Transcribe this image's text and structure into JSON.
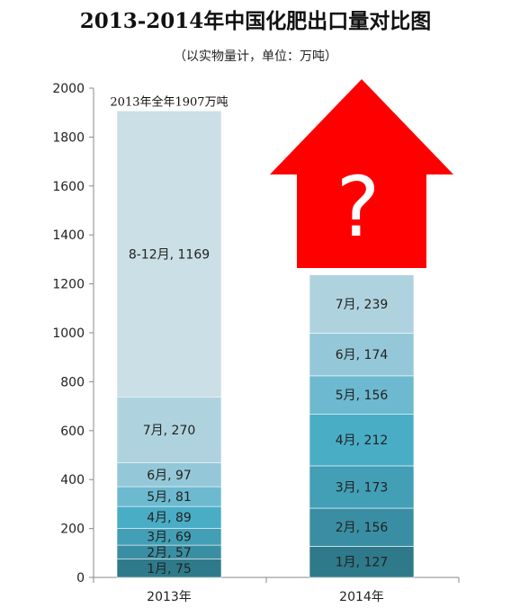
{
  "title": "2013-2014年中国化肥出口量对比图",
  "subtitle": "（以实物量计，单位：万吨）",
  "chart_data": {
    "type": "bar",
    "stacked": true,
    "ylim": [
      0,
      2000
    ],
    "yticks": [
      0,
      200,
      400,
      600,
      800,
      1000,
      1200,
      1400,
      1600,
      1800,
      2000
    ],
    "grid": false,
    "categories": [
      "2013年",
      "2014年"
    ],
    "bars": [
      {
        "category": "2013年",
        "total_label": "2013年全年1907万吨",
        "segments": [
          {
            "label": "1月, 75",
            "value": 75,
            "color": "#2e7a8a"
          },
          {
            "label": "2月, 57",
            "value": 57,
            "color": "#3a8ea3"
          },
          {
            "label": "3月, 69",
            "value": 69,
            "color": "#429fb5"
          },
          {
            "label": "4月, 89",
            "value": 89,
            "color": "#4aadc6"
          },
          {
            "label": "5月, 81",
            "value": 81,
            "color": "#6db9d0"
          },
          {
            "label": "6月, 97",
            "value": 97,
            "color": "#94c8d8"
          },
          {
            "label": "7月, 270",
            "value": 270,
            "color": "#afd3de"
          },
          {
            "label": "8-12月, 1169",
            "value": 1169,
            "color": "#cadfe6"
          }
        ]
      },
      {
        "category": "2014年",
        "segments": [
          {
            "label": "1月, 127",
            "value": 127,
            "color": "#2e7a8a"
          },
          {
            "label": "2月, 156",
            "value": 156,
            "color": "#3a8ea3"
          },
          {
            "label": "3月, 173",
            "value": 173,
            "color": "#429fb5"
          },
          {
            "label": "4月, 212",
            "value": 212,
            "color": "#4aadc6"
          },
          {
            "label": "5月, 156",
            "value": 156,
            "color": "#6db9d0"
          },
          {
            "label": "6月, 174",
            "value": 174,
            "color": "#94c8d8"
          },
          {
            "label": "7月, 239",
            "value": 239,
            "color": "#afd3de"
          }
        ]
      }
    ],
    "annotation": {
      "shape": "up-arrow",
      "text": "?",
      "color": "#ff0000"
    }
  }
}
